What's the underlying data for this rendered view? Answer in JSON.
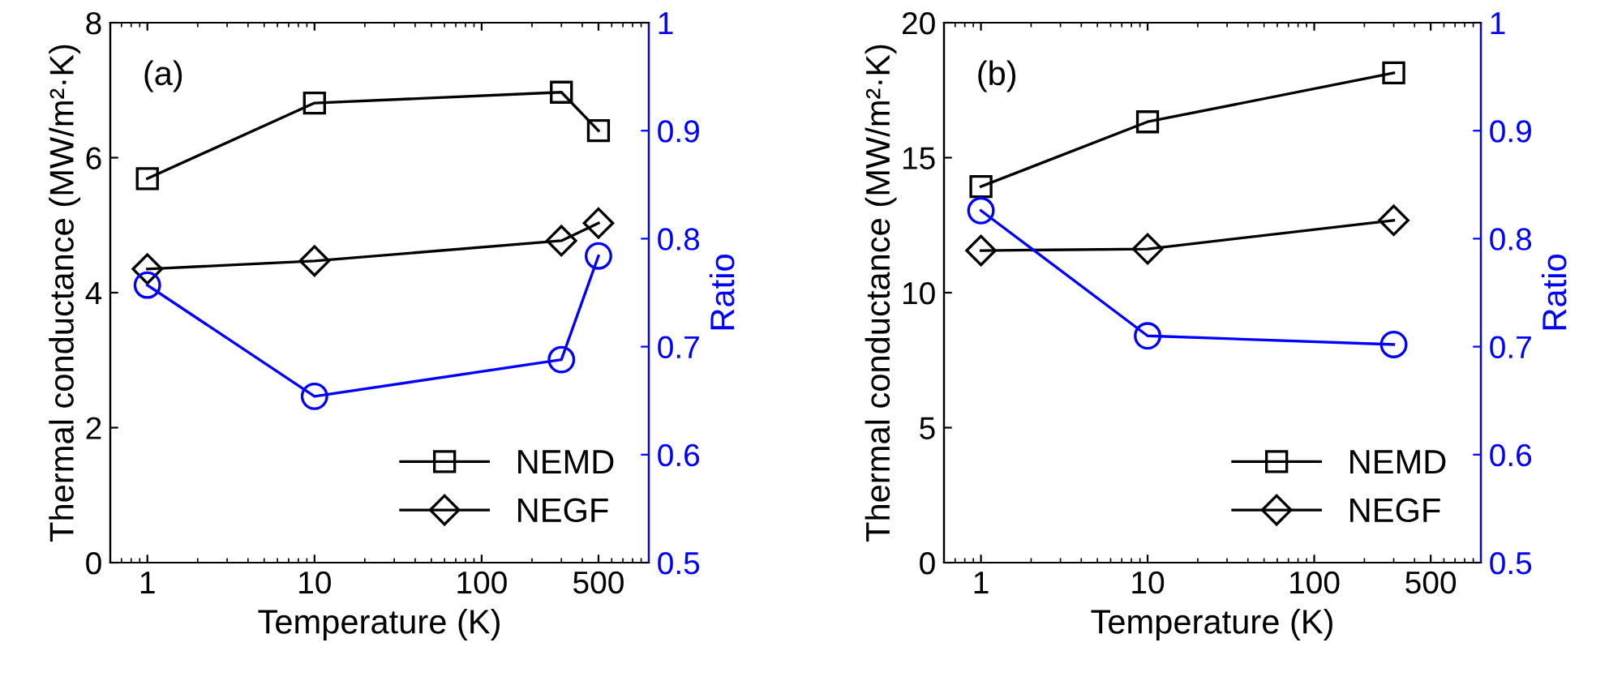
{
  "chart_data": [
    {
      "type": "line",
      "annotations": [
        "(a)"
      ],
      "xlabel": "Temperature (K)",
      "ylabel": "Thermal conductance (MW/m²·K)",
      "y2label": "Ratio",
      "log": "x",
      "x": [
        1,
        10,
        300,
        500
      ],
      "xlim": [
        0.6,
        1000
      ],
      "xticks": [
        1,
        10,
        100,
        500
      ],
      "ylim": [
        0,
        8
      ],
      "yticks": [
        0,
        2,
        4,
        6,
        8
      ],
      "y2lim": [
        0.5,
        1
      ],
      "y2ticks": [
        0.5,
        0.6,
        0.7,
        0.8,
        0.9,
        1
      ],
      "legend": "bottom right",
      "grid": false,
      "line_style": "solid",
      "series": [
        {
          "name": "NEMD",
          "color": "#000000",
          "marker": "square",
          "values": [
            5.69,
            6.81,
            6.97,
            6.4
          ]
        },
        {
          "name": "NEGF",
          "color": "#000000",
          "marker": "diamond",
          "values": [
            4.35,
            4.47,
            4.77,
            5.03
          ]
        },
        {
          "color": "#0000ff",
          "marker": "circle",
          "axis": "y2",
          "values": [
            0.757,
            0.654,
            0.688,
            0.784
          ]
        }
      ]
    },
    {
      "type": "line",
      "annotations": [
        "(b)"
      ],
      "xlabel": "Temperature (K)",
      "ylabel": "Thermal conductance (MW/m²·K)",
      "y2label": "Ratio",
      "log": "x",
      "x": [
        1,
        10,
        300
      ],
      "xlim": [
        0.6,
        1000
      ],
      "xticks": [
        1,
        10,
        100,
        500
      ],
      "ylim": [
        0,
        20
      ],
      "yticks": [
        0,
        5,
        10,
        15,
        20
      ],
      "y2lim": [
        0.5,
        1
      ],
      "y2ticks": [
        0.5,
        0.6,
        0.7,
        0.8,
        0.9,
        1
      ],
      "legend": "bottom right",
      "grid": false,
      "line_style": "solid",
      "series": [
        {
          "name": "NEMD",
          "color": "#000000",
          "marker": "square",
          "values": [
            13.93,
            16.33,
            18.14
          ]
        },
        {
          "name": "NEGF",
          "color": "#000000",
          "marker": "diamond",
          "values": [
            11.56,
            11.62,
            12.68
          ]
        },
        {
          "color": "#0000ff",
          "marker": "circle",
          "axis": "y2",
          "values": [
            0.826,
            0.71,
            0.702
          ]
        }
      ]
    }
  ]
}
